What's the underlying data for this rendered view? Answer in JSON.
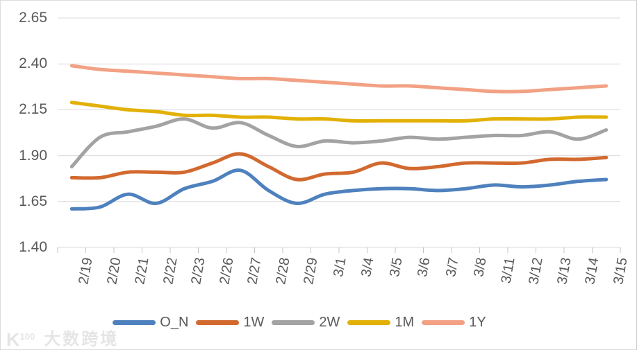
{
  "chart_data": {
    "type": "line",
    "title": "",
    "smooth": true,
    "grid": true,
    "legend_position": "bottom-center",
    "x_label_rotation_deg": -80,
    "categories": [
      "2/19",
      "2/20",
      "2/21",
      "2/22",
      "2/23",
      "2/26",
      "2/27",
      "2/28",
      "2/29",
      "3/1",
      "3/4",
      "3/5",
      "3/6",
      "3/7",
      "3/8",
      "3/11",
      "3/12",
      "3/13",
      "3/14",
      "3/15"
    ],
    "series": [
      {
        "name": "O_N",
        "color": "#4E81BD",
        "values": [
          1.61,
          1.62,
          1.69,
          1.64,
          1.72,
          1.76,
          1.82,
          1.71,
          1.64,
          1.69,
          1.71,
          1.72,
          1.72,
          1.71,
          1.72,
          1.74,
          1.73,
          1.74,
          1.76,
          1.77
        ]
      },
      {
        "name": "1W",
        "color": "#D2692F",
        "values": [
          1.78,
          1.78,
          1.81,
          1.81,
          1.81,
          1.86,
          1.91,
          1.84,
          1.77,
          1.8,
          1.81,
          1.86,
          1.83,
          1.84,
          1.86,
          1.86,
          1.86,
          1.88,
          1.88,
          1.89
        ]
      },
      {
        "name": "2W",
        "color": "#A3A3A3",
        "values": [
          1.84,
          2.0,
          2.03,
          2.06,
          2.1,
          2.05,
          2.08,
          2.01,
          1.95,
          1.98,
          1.97,
          1.98,
          2.0,
          1.99,
          2.0,
          2.01,
          2.01,
          2.03,
          1.99,
          2.04
        ]
      },
      {
        "name": "1M",
        "color": "#E2B107",
        "values": [
          2.19,
          2.17,
          2.15,
          2.14,
          2.12,
          2.12,
          2.11,
          2.11,
          2.1,
          2.1,
          2.09,
          2.09,
          2.09,
          2.09,
          2.09,
          2.1,
          2.1,
          2.1,
          2.11,
          2.11
        ]
      },
      {
        "name": "1Y",
        "color": "#F2A184",
        "values": [
          2.39,
          2.37,
          2.36,
          2.35,
          2.34,
          2.33,
          2.32,
          2.32,
          2.31,
          2.3,
          2.29,
          2.28,
          2.28,
          2.27,
          2.26,
          2.25,
          2.25,
          2.26,
          2.27,
          2.28
        ]
      }
    ],
    "ylim": [
      1.4,
      2.65
    ],
    "ytick_values": [
      2.65,
      2.4,
      2.15,
      1.9,
      1.65,
      1.4
    ],
    "ytick_labels": [
      "2.65",
      "2.40",
      "2.15",
      "1.90",
      "1.65",
      "1.40"
    ]
  },
  "legend": {
    "items": [
      "O_N",
      "1W",
      "2W",
      "1M",
      "1Y"
    ]
  },
  "colors": {
    "axis_text": "#595959",
    "gridline": "#D9D9D9",
    "axis_tick": "#C3C3C3",
    "background": "#FFFFFF"
  },
  "watermark": {
    "logo_k": "K",
    "logo_sup": "100",
    "text": "大数跨境"
  }
}
